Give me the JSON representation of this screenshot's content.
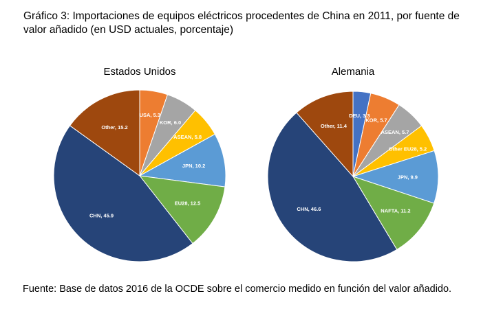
{
  "title": "Gráfico 3: Importaciones de equipos eléctricos procedentes de China en 2011, por fuente de valor añadido (en USD actuales, porcentaje)",
  "source": "Fuente: Base de datos 2016 de la OCDE sobre el comercio medido en función del valor añadido.",
  "chart_data": [
    {
      "type": "pie",
      "title": "Estados Unidos",
      "slices": [
        {
          "label": "USA, 5.3",
          "value": 5.3,
          "color": "#ed7d31"
        },
        {
          "label": "KOR, 6.0",
          "value": 6.0,
          "color": "#a5a5a5"
        },
        {
          "label": "ASEAN, 5.8",
          "value": 5.8,
          "color": "#ffc000"
        },
        {
          "label": "JPN, 10.2",
          "value": 10.2,
          "color": "#5b9bd5"
        },
        {
          "label": "EU28, 12.5",
          "value": 12.5,
          "color": "#70ad47"
        },
        {
          "label": "CHN, 45.9",
          "value": 45.9,
          "color": "#264478"
        },
        {
          "label": "Other, 15.2",
          "value": 15.2,
          "color": "#9e480e"
        }
      ]
    },
    {
      "type": "pie",
      "title": "Alemania",
      "slices": [
        {
          "label": "DEU, 3.3",
          "value": 3.3,
          "color": "#4472c4"
        },
        {
          "label": "KOR, 5.7",
          "value": 5.7,
          "color": "#ed7d31"
        },
        {
          "label": "ASEAN, 5.7",
          "value": 5.7,
          "color": "#a5a5a5"
        },
        {
          "label": "Other EU28, 5.2",
          "value": 5.2,
          "color": "#ffc000"
        },
        {
          "label": "JPN, 9.9",
          "value": 9.9,
          "color": "#5b9bd5"
        },
        {
          "label": "NAFTA, 11.2",
          "value": 11.2,
          "color": "#70ad47"
        },
        {
          "label": "CHN, 46.6",
          "value": 46.6,
          "color": "#264478"
        },
        {
          "label": "Other, 11.4",
          "value": 11.4,
          "color": "#9e480e"
        }
      ]
    }
  ]
}
